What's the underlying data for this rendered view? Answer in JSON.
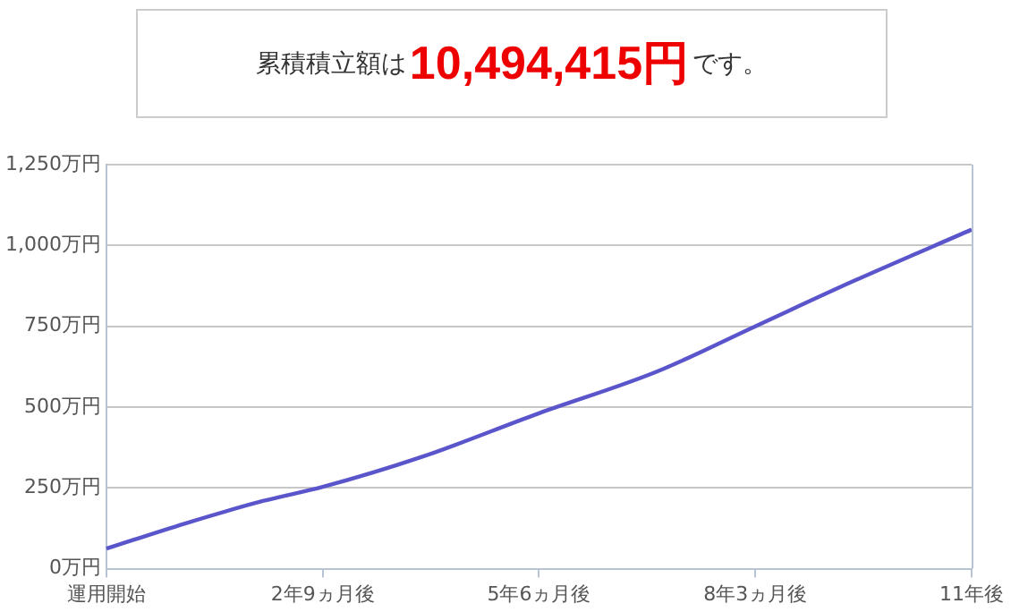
{
  "chart_data": {
    "type": "line",
    "title": "累積積立額は10,494,415円です。",
    "categories": [
      "運用開始",
      null,
      null,
      null,
      null,
      null,
      null,
      null,
      null,
      null,
      null,
      "2年9ヵ月後",
      null,
      null,
      null,
      null,
      null,
      null,
      null,
      null,
      null,
      null,
      "5年6ヵ月後",
      null,
      null,
      null,
      null,
      null,
      null,
      null,
      null,
      null,
      null,
      "8年3ヵ月後",
      null,
      null,
      null,
      null,
      null,
      null,
      null,
      null,
      null,
      null,
      "11年後"
    ],
    "series": [
      {
        "color": "#5b55cc",
        "values": [
          62,
          null,
          null,
          null,
          140,
          null,
          null,
          null,
          210,
          null,
          null,
          253,
          null,
          null,
          null,
          null,
          345,
          null,
          null,
          null,
          null,
          null,
          481,
          null,
          null,
          null,
          null,
          null,
          610,
          null,
          null,
          null,
          null,
          750,
          null,
          null,
          null,
          null,
          890,
          null,
          null,
          null,
          null,
          null,
          1049
        ]
      }
    ],
    "ylim": [
      0,
      1250
    ],
    "yticks": [
      {
        "value": 0,
        "label": "0万円"
      },
      {
        "value": 250,
        "label": "250万円"
      },
      {
        "value": 500,
        "label": "500万円"
      },
      {
        "value": 750,
        "label": "750万円"
      },
      {
        "value": 1000,
        "label": "1,000万円"
      },
      {
        "value": 1250,
        "label": "1,250万円"
      }
    ],
    "grid": "y",
    "legend": false,
    "marker": "none",
    "line_style": "solid"
  }
}
